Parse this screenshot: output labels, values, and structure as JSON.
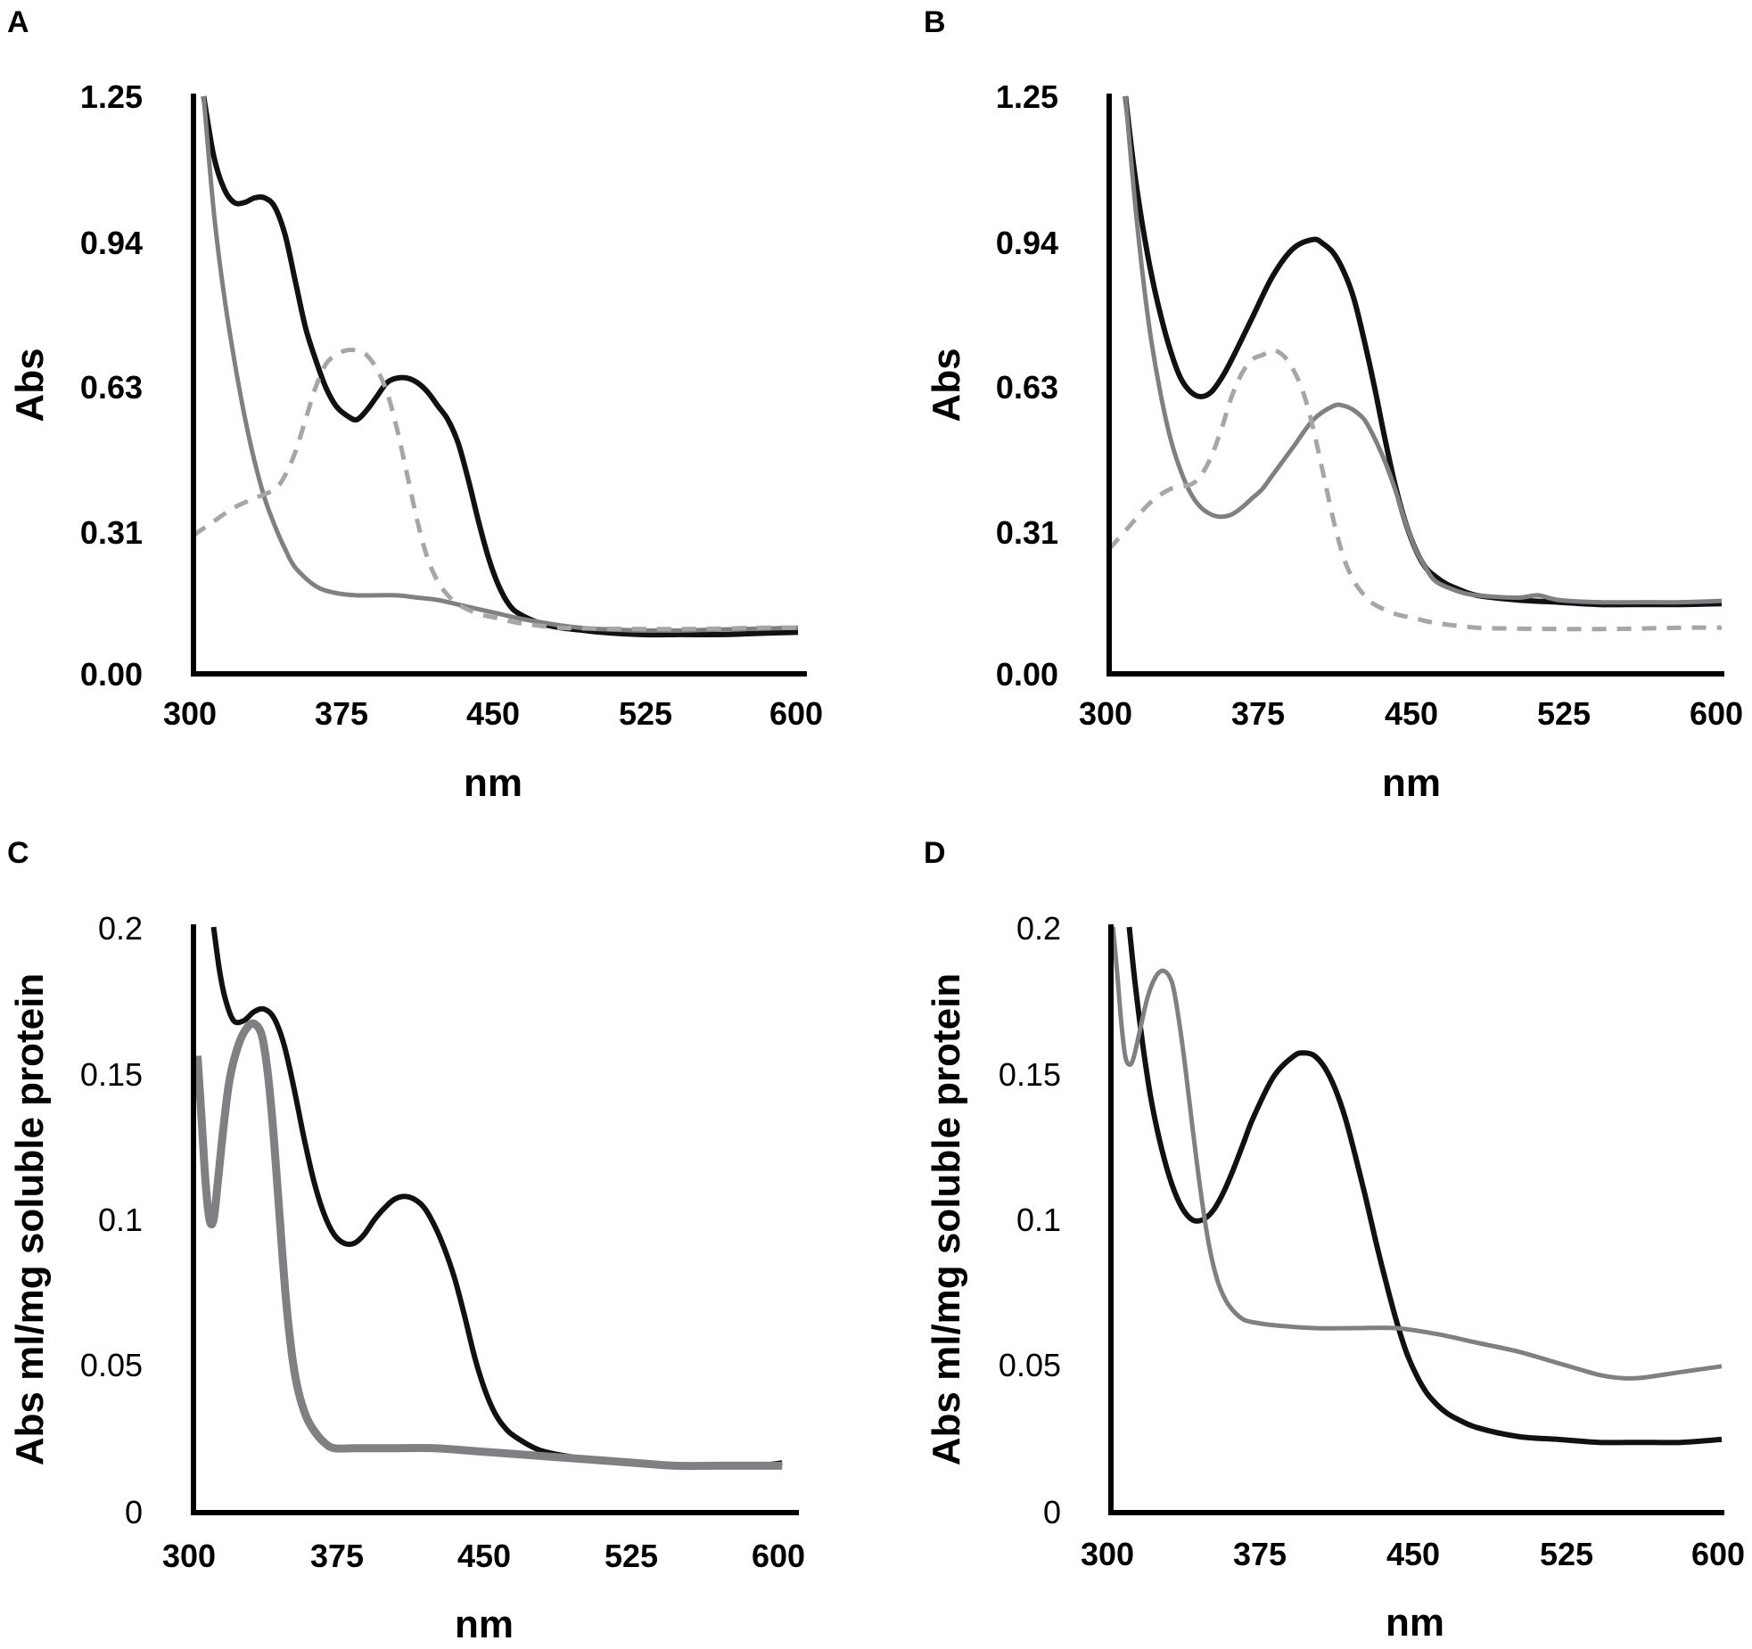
{
  "colors": {
    "black": "#111111",
    "gray": "#808083",
    "lightgray": "#a6a6a6"
  },
  "chart_data": [
    {
      "panel": "A",
      "type": "line",
      "xlabel": "nm",
      "ylabel": "Abs",
      "xlim": [
        300,
        600
      ],
      "ylim": [
        0,
        1.25
      ],
      "xticks": [
        300,
        375,
        450,
        525,
        600
      ],
      "yticks": [
        "0.00",
        "0.31",
        "0.63",
        "0.94",
        "1.25"
      ],
      "ytick_values": [
        0,
        0.31,
        0.63,
        0.94,
        1.25
      ],
      "ytick_style": "bold",
      "series": [
        {
          "name": "black-solid",
          "color": "black",
          "dash": false,
          "width": 6,
          "x": [
            305,
            310,
            315,
            320,
            325,
            330,
            335,
            340,
            345,
            350,
            355,
            360,
            365,
            370,
            375,
            380,
            385,
            390,
            395,
            400,
            405,
            410,
            415,
            420,
            425,
            430,
            435,
            440,
            445,
            450,
            455,
            460,
            470,
            480,
            490,
            500,
            520,
            540,
            560,
            580,
            597
          ],
          "y": [
            1.25,
            1.12,
            1.05,
            1.02,
            1.02,
            1.03,
            1.03,
            1.01,
            0.95,
            0.85,
            0.75,
            0.68,
            0.62,
            0.58,
            0.56,
            0.55,
            0.57,
            0.6,
            0.63,
            0.64,
            0.64,
            0.63,
            0.61,
            0.58,
            0.55,
            0.5,
            0.42,
            0.33,
            0.25,
            0.19,
            0.15,
            0.13,
            0.11,
            0.1,
            0.095,
            0.09,
            0.085,
            0.085,
            0.085,
            0.088,
            0.09
          ]
        },
        {
          "name": "gray-solid",
          "color": "gray",
          "dash": false,
          "width": 5,
          "x": [
            305,
            310,
            315,
            320,
            325,
            330,
            335,
            340,
            345,
            350,
            360,
            370,
            380,
            390,
            400,
            410,
            420,
            430,
            440,
            450,
            460,
            470,
            480,
            490,
            500,
            520,
            540,
            560,
            580,
            597
          ],
          "y": [
            1.25,
            1.0,
            0.82,
            0.68,
            0.56,
            0.46,
            0.38,
            0.32,
            0.27,
            0.23,
            0.19,
            0.175,
            0.17,
            0.17,
            0.17,
            0.165,
            0.16,
            0.15,
            0.14,
            0.13,
            0.12,
            0.112,
            0.105,
            0.1,
            0.097,
            0.094,
            0.094,
            0.096,
            0.098,
            0.1
          ]
        },
        {
          "name": "gray-dashed",
          "color": "lightgray",
          "dash": true,
          "width": 5,
          "x": [
            300,
            310,
            320,
            330,
            340,
            345,
            350,
            355,
            360,
            365,
            370,
            375,
            380,
            385,
            390,
            395,
            400,
            405,
            410,
            415,
            420,
            425,
            430,
            440,
            450,
            460,
            480,
            500,
            520,
            540,
            560,
            580,
            597
          ],
          "y": [
            0.3,
            0.33,
            0.36,
            0.38,
            0.4,
            0.43,
            0.48,
            0.55,
            0.62,
            0.67,
            0.69,
            0.7,
            0.7,
            0.69,
            0.66,
            0.61,
            0.53,
            0.43,
            0.33,
            0.25,
            0.2,
            0.17,
            0.15,
            0.13,
            0.12,
            0.11,
            0.1,
            0.098,
            0.097,
            0.097,
            0.098,
            0.1,
            0.1
          ]
        }
      ]
    },
    {
      "panel": "B",
      "type": "line",
      "xlabel": "nm",
      "ylabel": "Abs",
      "xlim": [
        300,
        600
      ],
      "ylim": [
        0,
        1.25
      ],
      "xticks": [
        300,
        375,
        450,
        525,
        600
      ],
      "yticks": [
        "0.00",
        "0.31",
        "0.63",
        "0.94",
        "1.25"
      ],
      "ytick_values": [
        0,
        0.31,
        0.63,
        0.94,
        1.25
      ],
      "ytick_style": "bold",
      "series": [
        {
          "name": "black-solid",
          "color": "black",
          "dash": false,
          "width": 6,
          "x": [
            308,
            312,
            316,
            320,
            325,
            330,
            335,
            340,
            345,
            350,
            355,
            360,
            370,
            380,
            390,
            400,
            405,
            410,
            415,
            420,
            425,
            430,
            435,
            440,
            445,
            450,
            455,
            460,
            465,
            470,
            480,
            500,
            520,
            540,
            560,
            580,
            600
          ],
          "y": [
            1.25,
            1.1,
            0.98,
            0.88,
            0.78,
            0.7,
            0.64,
            0.61,
            0.6,
            0.61,
            0.64,
            0.68,
            0.77,
            0.86,
            0.92,
            0.94,
            0.93,
            0.91,
            0.87,
            0.81,
            0.72,
            0.62,
            0.51,
            0.41,
            0.33,
            0.27,
            0.23,
            0.21,
            0.195,
            0.185,
            0.17,
            0.16,
            0.155,
            0.15,
            0.15,
            0.15,
            0.152
          ]
        },
        {
          "name": "gray-solid",
          "color": "gray",
          "dash": false,
          "width": 5,
          "x": [
            308,
            312,
            316,
            320,
            325,
            330,
            335,
            340,
            345,
            350,
            355,
            360,
            365,
            370,
            375,
            380,
            390,
            400,
            410,
            415,
            420,
            425,
            430,
            435,
            440,
            445,
            450,
            455,
            460,
            470,
            480,
            500,
            510,
            520,
            540,
            560,
            580,
            600
          ],
          "y": [
            1.25,
            1.05,
            0.88,
            0.74,
            0.61,
            0.51,
            0.44,
            0.39,
            0.36,
            0.345,
            0.34,
            0.345,
            0.36,
            0.38,
            0.4,
            0.43,
            0.49,
            0.55,
            0.58,
            0.58,
            0.57,
            0.55,
            0.51,
            0.46,
            0.4,
            0.33,
            0.27,
            0.23,
            0.2,
            0.18,
            0.17,
            0.165,
            0.17,
            0.16,
            0.155,
            0.155,
            0.155,
            0.158
          ]
        },
        {
          "name": "gray-dashed",
          "color": "lightgray",
          "dash": true,
          "width": 5,
          "x": [
            300,
            310,
            320,
            330,
            340,
            345,
            350,
            355,
            360,
            365,
            370,
            375,
            380,
            385,
            390,
            395,
            400,
            405,
            410,
            415,
            420,
            425,
            430,
            440,
            450,
            460,
            480,
            500,
            520,
            540,
            560,
            580,
            600
          ],
          "y": [
            0.27,
            0.32,
            0.37,
            0.4,
            0.41,
            0.43,
            0.47,
            0.53,
            0.6,
            0.65,
            0.68,
            0.69,
            0.7,
            0.69,
            0.66,
            0.61,
            0.53,
            0.43,
            0.33,
            0.25,
            0.2,
            0.17,
            0.15,
            0.13,
            0.12,
            0.11,
            0.1,
            0.098,
            0.097,
            0.097,
            0.098,
            0.1,
            0.1
          ]
        }
      ]
    },
    {
      "panel": "C",
      "type": "line",
      "xlabel": "nm",
      "ylabel": "Abs ml/mg soluble protein",
      "xlim": [
        300,
        600
      ],
      "ylim": [
        0,
        0.2
      ],
      "xticks": [
        300,
        375,
        450,
        525,
        600
      ],
      "yticks": [
        "0",
        "0.05",
        "0.1",
        "0.15",
        "0.2"
      ],
      "ytick_values": [
        0,
        0.05,
        0.1,
        0.15,
        0.2
      ],
      "ytick_style": "plain",
      "series": [
        {
          "name": "black-solid",
          "color": "black",
          "dash": false,
          "width": 6,
          "x": [
            310,
            313,
            316,
            320,
            325,
            330,
            335,
            340,
            345,
            350,
            355,
            360,
            365,
            370,
            375,
            380,
            385,
            390,
            395,
            400,
            405,
            410,
            415,
            420,
            425,
            430,
            435,
            440,
            445,
            450,
            455,
            460,
            470,
            480,
            500,
            520,
            540,
            560,
            580,
            593
          ],
          "y": [
            0.2,
            0.185,
            0.175,
            0.168,
            0.168,
            0.171,
            0.172,
            0.169,
            0.16,
            0.145,
            0.128,
            0.113,
            0.102,
            0.095,
            0.092,
            0.092,
            0.095,
            0.1,
            0.104,
            0.107,
            0.108,
            0.107,
            0.104,
            0.098,
            0.09,
            0.08,
            0.067,
            0.053,
            0.042,
            0.034,
            0.029,
            0.026,
            0.022,
            0.02,
            0.018,
            0.017,
            0.016,
            0.016,
            0.016,
            0.017
          ]
        },
        {
          "name": "gray-solid",
          "color": "gray",
          "dash": false,
          "width": 9,
          "x": [
            302,
            304,
            306,
            308,
            310,
            312,
            315,
            318,
            322,
            326,
            330,
            334,
            337,
            340,
            343,
            346,
            349,
            352,
            356,
            360,
            365,
            370,
            380,
            390,
            400,
            420,
            440,
            460,
            480,
            500,
            520,
            540,
            560,
            580,
            593
          ],
          "y": [
            0.156,
            0.135,
            0.113,
            0.1,
            0.1,
            0.112,
            0.132,
            0.148,
            0.159,
            0.165,
            0.167,
            0.163,
            0.15,
            0.128,
            0.1,
            0.073,
            0.054,
            0.042,
            0.033,
            0.028,
            0.024,
            0.022,
            0.022,
            0.022,
            0.022,
            0.022,
            0.021,
            0.02,
            0.019,
            0.018,
            0.017,
            0.016,
            0.016,
            0.016,
            0.016
          ]
        }
      ]
    },
    {
      "panel": "D",
      "type": "line",
      "xlabel": "nm",
      "ylabel": "Abs ml/mg soluble protein",
      "xlim": [
        300,
        600
      ],
      "ylim": [
        0,
        0.2
      ],
      "xticks": [
        300,
        375,
        450,
        525,
        600
      ],
      "yticks": [
        "0",
        "0.05",
        "0.1",
        "0.15",
        "0.2"
      ],
      "ytick_values": [
        0,
        0.05,
        0.1,
        0.15,
        0.2
      ],
      "ytick_style": "plain",
      "series": [
        {
          "name": "black-solid",
          "color": "black",
          "dash": false,
          "width": 6,
          "x": [
            309,
            312,
            316,
            320,
            325,
            330,
            335,
            340,
            345,
            350,
            355,
            360,
            365,
            370,
            380,
            390,
            395,
            400,
            405,
            410,
            415,
            420,
            425,
            430,
            435,
            440,
            445,
            450,
            455,
            460,
            465,
            470,
            480,
            500,
            520,
            540,
            560,
            580,
            600
          ],
          "y": [
            0.2,
            0.18,
            0.158,
            0.14,
            0.124,
            0.112,
            0.104,
            0.1,
            0.1,
            0.103,
            0.109,
            0.117,
            0.126,
            0.135,
            0.149,
            0.156,
            0.157,
            0.156,
            0.152,
            0.145,
            0.135,
            0.122,
            0.108,
            0.093,
            0.079,
            0.066,
            0.055,
            0.047,
            0.041,
            0.037,
            0.034,
            0.032,
            0.029,
            0.026,
            0.025,
            0.024,
            0.024,
            0.024,
            0.025
          ]
        },
        {
          "name": "gray-solid",
          "color": "gray",
          "dash": false,
          "width": 5,
          "x": [
            301,
            303,
            305,
            307,
            309,
            311,
            314,
            318,
            322,
            326,
            330,
            333,
            336,
            340,
            344,
            348,
            352,
            356,
            360,
            365,
            370,
            380,
            400,
            420,
            440,
            460,
            480,
            500,
            520,
            540,
            550,
            560,
            580,
            600
          ],
          "y": [
            0.2,
            0.185,
            0.168,
            0.156,
            0.153,
            0.155,
            0.164,
            0.176,
            0.183,
            0.185,
            0.181,
            0.17,
            0.155,
            0.132,
            0.11,
            0.092,
            0.08,
            0.073,
            0.069,
            0.066,
            0.065,
            0.064,
            0.063,
            0.063,
            0.063,
            0.061,
            0.058,
            0.055,
            0.051,
            0.047,
            0.046,
            0.046,
            0.048,
            0.05
          ]
        }
      ]
    }
  ]
}
